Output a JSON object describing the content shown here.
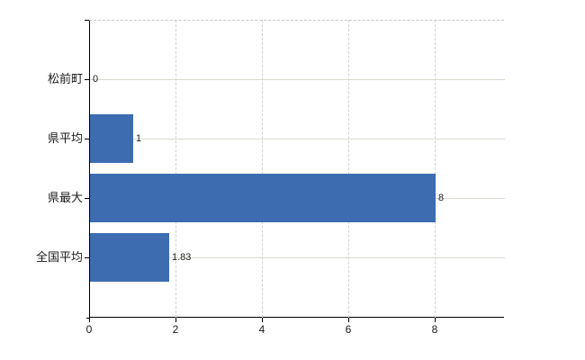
{
  "chart_data": {
    "type": "bar",
    "orientation": "horizontal",
    "title": "",
    "xlabel": "",
    "ylabel": "",
    "categories": [
      "松前町",
      "県平均",
      "県最大",
      "全国平均"
    ],
    "values": [
      0,
      1,
      8,
      1.83
    ],
    "value_labels": [
      "0",
      "1",
      "8",
      "1.83"
    ],
    "x_ticks": [
      0,
      2,
      4,
      6,
      8
    ],
    "x_tick_labels": [
      "0",
      "2",
      "4",
      "6",
      "8"
    ],
    "xlim": [
      0,
      9.6
    ],
    "grid": "on",
    "gridlines": {
      "vertical": "dashed at each x tick",
      "horizontal": "solid at each category center",
      "top_border": "dashed"
    },
    "legend": "none"
  },
  "colors": {
    "bar": "#3d6cb1",
    "axis": "#000000",
    "h_grid": "#d6dacf",
    "v_grid": "#d2d2d2",
    "top_border": "#c8c8c8",
    "background": "#ffffff",
    "text": "#1a1a1a"
  }
}
